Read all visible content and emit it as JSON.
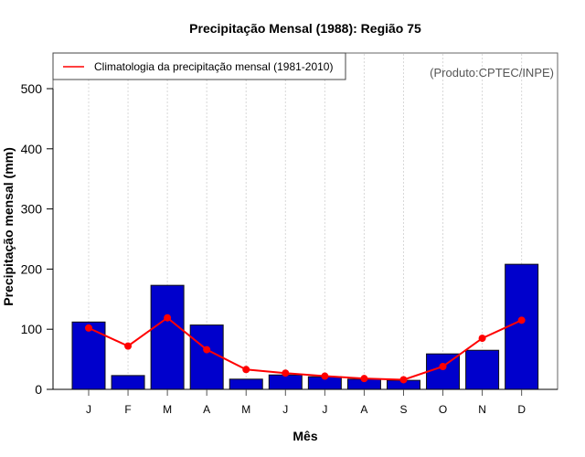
{
  "chart_data": {
    "type": "bar",
    "title": "Precipitação Mensal (1988): Região 75",
    "xlabel": "Mês",
    "ylabel": "Precipitação mensal (mm)",
    "categories": [
      "J",
      "F",
      "M",
      "A",
      "M",
      "J",
      "J",
      "A",
      "S",
      "O",
      "N",
      "D"
    ],
    "ylim": [
      0,
      560
    ],
    "yticks": [
      0,
      100,
      200,
      300,
      400,
      500
    ],
    "grid": "vertical-dashed",
    "series": [
      {
        "name": "Precipitação mensal (1988)",
        "kind": "bar",
        "color": "#0000cc",
        "values": [
          112,
          23,
          173,
          107,
          17,
          24,
          21,
          17,
          15,
          59,
          65,
          208
        ]
      },
      {
        "name": "Climatologia da precipitação mensal (1981-2010)",
        "kind": "line",
        "color": "#ff0000",
        "values": [
          102,
          72,
          119,
          66,
          33,
          27,
          22,
          18,
          16,
          38,
          85,
          115
        ]
      }
    ],
    "legend": {
      "placement": "top-left",
      "entries": [
        "Climatologia da precipitação mensal (1981-2010)"
      ]
    },
    "annotation": "(Produto:CPTEC/INPE)"
  }
}
